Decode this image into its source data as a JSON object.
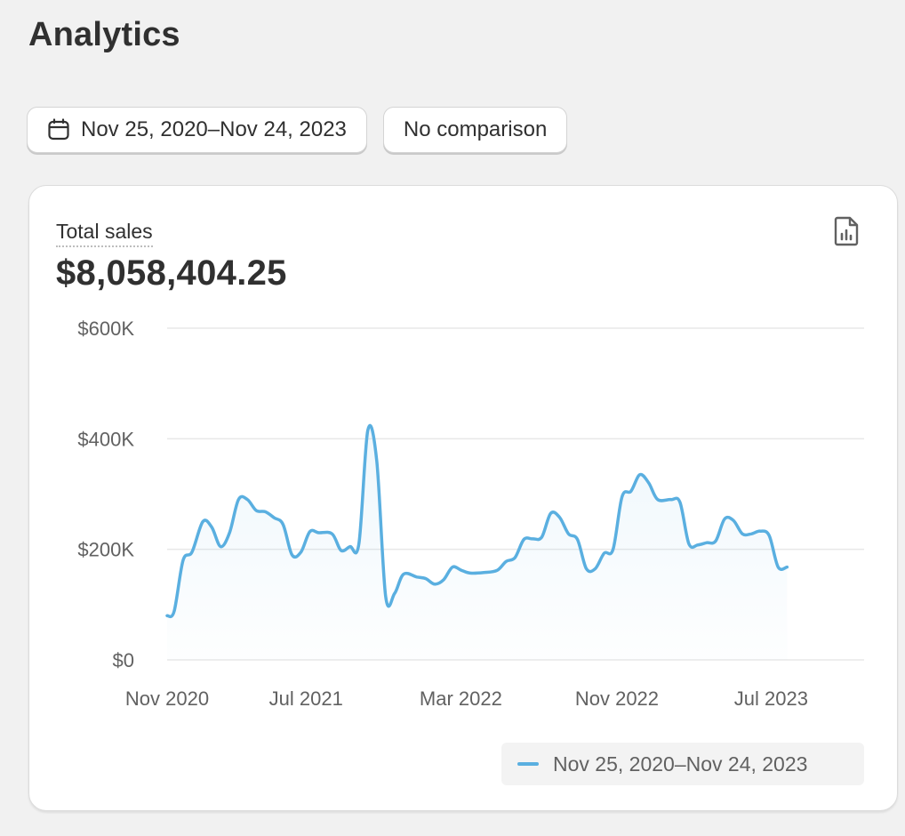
{
  "page": {
    "title": "Analytics"
  },
  "toolbar": {
    "date_range_label": "Nov 25, 2020–Nov 24, 2023",
    "comparison_label": "No comparison"
  },
  "metric": {
    "label": "Total sales",
    "value": "$8,058,404.25"
  },
  "icons": {
    "date_range": "calendar-icon",
    "report": "chart-report-icon"
  },
  "colors": {
    "series": "#5aafe0"
  },
  "chart_data": {
    "type": "area",
    "ylim": [
      0,
      600000
    ],
    "y_ticks": [
      {
        "value": 600000,
        "label": "$600K"
      },
      {
        "value": 400000,
        "label": "$400K"
      },
      {
        "value": 200000,
        "label": "$200K"
      },
      {
        "value": 0,
        "label": "$0"
      }
    ],
    "x_ticks": [
      {
        "date": "2020-11-25",
        "label": "Nov 2020"
      },
      {
        "date": "2021-07-01",
        "label": "Jul 2021"
      },
      {
        "date": "2022-03-01",
        "label": "Mar 2022"
      },
      {
        "date": "2022-11-01",
        "label": "Nov 2022"
      },
      {
        "date": "2023-07-01",
        "label": "Jul 2023"
      }
    ],
    "grid": true,
    "legend_position": "bottom-right",
    "series": [
      {
        "name": "Nov 25, 2020–Nov 24, 2023",
        "points": [
          [
            "2020-11-25",
            80000
          ],
          [
            "2020-12-06",
            88000
          ],
          [
            "2020-12-20",
            180000
          ],
          [
            "2021-01-03",
            195000
          ],
          [
            "2021-01-20",
            250000
          ],
          [
            "2021-02-03",
            240000
          ],
          [
            "2021-02-17",
            205000
          ],
          [
            "2021-03-03",
            230000
          ],
          [
            "2021-03-17",
            290000
          ],
          [
            "2021-03-31",
            290000
          ],
          [
            "2021-04-14",
            270000
          ],
          [
            "2021-04-28",
            268000
          ],
          [
            "2021-05-12",
            257000
          ],
          [
            "2021-05-26",
            245000
          ],
          [
            "2021-06-09",
            190000
          ],
          [
            "2021-06-23",
            195000
          ],
          [
            "2021-07-07",
            232000
          ],
          [
            "2021-07-21",
            230000
          ],
          [
            "2021-08-11",
            228000
          ],
          [
            "2021-08-25",
            198000
          ],
          [
            "2021-09-08",
            205000
          ],
          [
            "2021-09-22",
            210000
          ],
          [
            "2021-10-06",
            415000
          ],
          [
            "2021-10-20",
            360000
          ],
          [
            "2021-11-03",
            115000
          ],
          [
            "2021-11-17",
            120000
          ],
          [
            "2021-12-01",
            155000
          ],
          [
            "2021-12-22",
            150000
          ],
          [
            "2022-01-05",
            147000
          ],
          [
            "2022-01-19",
            137000
          ],
          [
            "2022-02-02",
            145000
          ],
          [
            "2022-02-16",
            168000
          ],
          [
            "2022-03-02",
            162000
          ],
          [
            "2022-03-16",
            157000
          ],
          [
            "2022-04-06",
            158000
          ],
          [
            "2022-04-27",
            162000
          ],
          [
            "2022-05-11",
            178000
          ],
          [
            "2022-05-25",
            185000
          ],
          [
            "2022-06-08",
            218000
          ],
          [
            "2022-06-22",
            219000
          ],
          [
            "2022-07-06",
            222000
          ],
          [
            "2022-07-20",
            265000
          ],
          [
            "2022-08-03",
            258000
          ],
          [
            "2022-08-17",
            228000
          ],
          [
            "2022-08-31",
            218000
          ],
          [
            "2022-09-14",
            165000
          ],
          [
            "2022-09-28",
            165000
          ],
          [
            "2022-10-12",
            193000
          ],
          [
            "2022-10-26",
            200000
          ],
          [
            "2022-11-09",
            295000
          ],
          [
            "2022-11-23",
            305000
          ],
          [
            "2022-12-07",
            335000
          ],
          [
            "2022-12-21",
            320000
          ],
          [
            "2023-01-04",
            290000
          ],
          [
            "2023-01-25",
            290000
          ],
          [
            "2023-02-08",
            285000
          ],
          [
            "2023-02-22",
            210000
          ],
          [
            "2023-03-08",
            208000
          ],
          [
            "2023-03-22",
            212000
          ],
          [
            "2023-04-05",
            215000
          ],
          [
            "2023-04-19",
            255000
          ],
          [
            "2023-05-03",
            252000
          ],
          [
            "2023-05-17",
            228000
          ],
          [
            "2023-05-31",
            228000
          ],
          [
            "2023-06-14",
            233000
          ],
          [
            "2023-06-28",
            225000
          ],
          [
            "2023-07-12",
            168000
          ],
          [
            "2023-07-26",
            168000
          ]
        ]
      }
    ]
  }
}
